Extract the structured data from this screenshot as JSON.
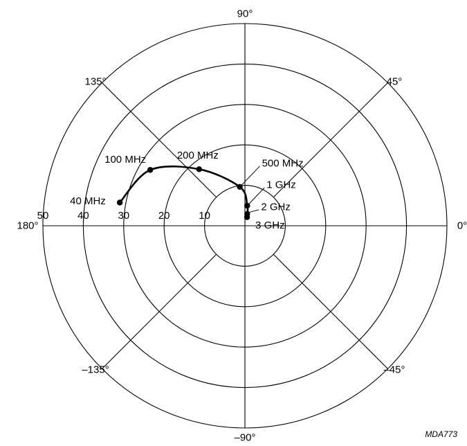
{
  "chart_data": {
    "type": "polar",
    "radial_max": 50,
    "radial_ticks": [
      10,
      20,
      30,
      40,
      50
    ],
    "radial_tick_labels": [
      "10",
      "20",
      "30",
      "40",
      "50"
    ],
    "angle_lines_deg": [
      0,
      45,
      90,
      135,
      180,
      -135,
      -90,
      -45
    ],
    "angle_labels": [
      {
        "deg": 90,
        "text": "90°"
      },
      {
        "deg": 45,
        "text": "45°"
      },
      {
        "deg": 135,
        "text": "135°"
      },
      {
        "deg": 180,
        "text": "180°"
      },
      {
        "deg": 0,
        "text": "0°"
      },
      {
        "deg": -135,
        "text": "–135°"
      },
      {
        "deg": -45,
        "text": "–45°"
      },
      {
        "deg": -90,
        "text": "–90°"
      }
    ],
    "series": [
      {
        "points": [
          {
            "label": "40 MHz",
            "r": 31.5,
            "theta": 169.5
          },
          {
            "label": "100 MHz",
            "r": 27.2,
            "theta": 149.5
          },
          {
            "label": "200 MHz",
            "r": 18.0,
            "theta": 129.0
          },
          {
            "label": "500 MHz",
            "r": 9.7,
            "theta": 97.5
          },
          {
            "label": "1 GHz",
            "r": 5.0,
            "theta": 83.5
          },
          {
            "label": "2 GHz",
            "r": 3.0,
            "theta": 79.0
          },
          {
            "label": "3 GHz",
            "r": 2.2,
            "theta": 76.0
          }
        ]
      }
    ],
    "grid": true
  },
  "figure_code": "MDA773",
  "colors": {
    "ink": "#000000",
    "background": "#ffffff"
  }
}
